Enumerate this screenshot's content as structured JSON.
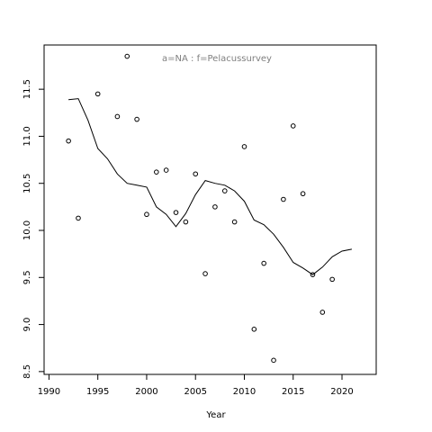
{
  "chart_data": {
    "type": "scatter",
    "annotation": "a=NA  :  f=Pelacussurvey",
    "xlabel": "Year",
    "ylabel": "",
    "xlim": [
      1989.5,
      2023.5
    ],
    "ylim": [
      8.47,
      11.97
    ],
    "xticks": [
      1990,
      1995,
      2000,
      2005,
      2010,
      2015,
      2020
    ],
    "yticks": [
      8.5,
      9.0,
      9.5,
      10.0,
      10.5,
      11.0,
      11.5
    ],
    "xtick_labels": [
      "1990",
      "1995",
      "2000",
      "2005",
      "2010",
      "2015",
      "2020"
    ],
    "ytick_labels": [
      "8.5",
      "9.0",
      "9.5",
      "10.0",
      "10.5",
      "11.0",
      "11.5"
    ],
    "grid": false,
    "series": [
      {
        "kind": "points",
        "x": [
          1992,
          1993,
          1995,
          1997,
          1998,
          1999,
          2000,
          2001,
          2002,
          2003,
          2004,
          2005,
          2006,
          2007,
          2008,
          2009,
          2010,
          2011,
          2012,
          2013,
          2014,
          2015,
          2016,
          2017,
          2018,
          2019
        ],
        "y": [
          10.95,
          10.13,
          11.45,
          11.21,
          11.85,
          11.18,
          10.17,
          10.62,
          10.64,
          10.19,
          10.09,
          10.6,
          9.54,
          10.25,
          10.42,
          10.09,
          10.89,
          8.95,
          9.65,
          8.62,
          10.33,
          11.11,
          10.39,
          9.53,
          9.13,
          9.48
        ]
      },
      {
        "kind": "line",
        "x": [
          1992,
          1993,
          1994,
          1995,
          1996,
          1997,
          1998,
          1999,
          2000,
          2001,
          2002,
          2003,
          2004,
          2005,
          2006,
          2007,
          2008,
          2009,
          2010,
          2011,
          2012,
          2013,
          2014,
          2015,
          2016,
          2017,
          2018,
          2019,
          2020,
          2021
        ],
        "y": [
          11.39,
          11.4,
          11.17,
          10.87,
          10.76,
          10.6,
          10.5,
          10.48,
          10.46,
          10.25,
          10.17,
          10.04,
          10.18,
          10.38,
          10.53,
          10.5,
          10.48,
          10.42,
          10.31,
          10.11,
          10.06,
          9.96,
          9.82,
          9.66,
          9.6,
          9.53,
          9.61,
          9.72,
          9.78,
          9.8
        ]
      }
    ]
  }
}
